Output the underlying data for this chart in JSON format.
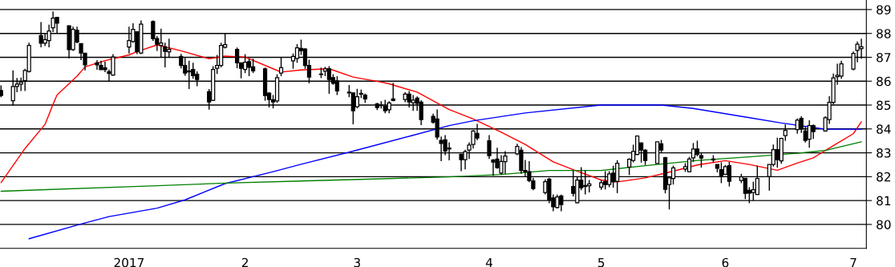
{
  "chart_data": {
    "type": "candlestick",
    "x": [
      "2016-12-02",
      "2016-12-05",
      "2016-12-06",
      "2016-12-07",
      "2016-12-08",
      "2016-12-09",
      "2016-12-12",
      "2016-12-13",
      "2016-12-14",
      "2016-12-15",
      "2016-12-16",
      "2016-12-19",
      "2016-12-20",
      "2016-12-21",
      "2016-12-22",
      "2016-12-23",
      "2016-12-26",
      "2016-12-27",
      "2016-12-28",
      "2016-12-29",
      "2016-12-30",
      "2017-01-03",
      "2017-01-04",
      "2017-01-05",
      "2017-01-06",
      "2017-01-09",
      "2017-01-10",
      "2017-01-11",
      "2017-01-12",
      "2017-01-13",
      "2017-01-16",
      "2017-01-17",
      "2017-01-18",
      "2017-01-19",
      "2017-01-20",
      "2017-01-23",
      "2017-01-24",
      "2017-01-25",
      "2017-01-26",
      "2017-01-27",
      "2017-01-30",
      "2017-01-31",
      "2017-02-01",
      "2017-02-02",
      "2017-02-03",
      "2017-02-06",
      "2017-02-07",
      "2017-02-08",
      "2017-02-09",
      "2017-02-10",
      "2017-02-13",
      "2017-02-14",
      "2017-02-15",
      "2017-02-16",
      "2017-02-17",
      "2017-02-20",
      "2017-02-21",
      "2017-02-22",
      "2017-02-23",
      "2017-02-24",
      "2017-02-27",
      "2017-02-28",
      "2017-03-01",
      "2017-03-02",
      "2017-03-03",
      "2017-03-06",
      "2017-03-07",
      "2017-03-08",
      "2017-03-09",
      "2017-03-10",
      "2017-03-13",
      "2017-03-14",
      "2017-03-15",
      "2017-03-16",
      "2017-03-17",
      "2017-03-20",
      "2017-03-21",
      "2017-03-22",
      "2017-03-23",
      "2017-03-24",
      "2017-03-27",
      "2017-03-28",
      "2017-03-29",
      "2017-03-30",
      "2017-03-31",
      "2017-04-03",
      "2017-04-04",
      "2017-04-05",
      "2017-04-06",
      "2017-04-07",
      "2017-04-10",
      "2017-04-11",
      "2017-04-12",
      "2017-04-13",
      "2017-04-14",
      "2017-04-17",
      "2017-04-18",
      "2017-04-19",
      "2017-04-20",
      "2017-04-21",
      "2017-04-24",
      "2017-04-25",
      "2017-04-26",
      "2017-04-27",
      "2017-04-28",
      "2017-05-01",
      "2017-05-02",
      "2017-05-03",
      "2017-05-04",
      "2017-05-05",
      "2017-05-08",
      "2017-05-09",
      "2017-05-10",
      "2017-05-11",
      "2017-05-12",
      "2017-05-15",
      "2017-05-16",
      "2017-05-17",
      "2017-05-18",
      "2017-05-19",
      "2017-05-22",
      "2017-05-23",
      "2017-05-24",
      "2017-05-25",
      "2017-05-26",
      "2017-05-29",
      "2017-05-30",
      "2017-05-31",
      "2017-06-01",
      "2017-06-02",
      "2017-06-05",
      "2017-06-06",
      "2017-06-07",
      "2017-06-08",
      "2017-06-09",
      "2017-06-12",
      "2017-06-13",
      "2017-06-14",
      "2017-06-15",
      "2017-06-16",
      "2017-06-19",
      "2017-06-20",
      "2017-06-21",
      "2017-06-22",
      "2017-06-23",
      "2017-06-26",
      "2017-06-27",
      "2017-06-28",
      "2017-06-29",
      "2017-06-30",
      "2017-07-03",
      "2017-07-04",
      "2017-07-05"
    ],
    "ohlc": [
      [
        85.61,
        85.82,
        85.33,
        85.4
      ],
      [
        85.18,
        86.45,
        84.98,
        85.78
      ],
      [
        85.78,
        86.13,
        85.54,
        85.88
      ],
      [
        85.88,
        86.15,
        85.59,
        85.96
      ],
      [
        86.02,
        86.52,
        85.59,
        86.45
      ],
      [
        86.41,
        87.61,
        86.36,
        87.5
      ],
      [
        87.91,
        88.48,
        87.42,
        87.59
      ],
      [
        87.59,
        88.0,
        87.47,
        87.74
      ],
      [
        87.7,
        88.37,
        87.42,
        88.1
      ],
      [
        88.24,
        88.92,
        88.06,
        88.64
      ],
      [
        88.67,
        88.67,
        88.0,
        88.43
      ],
      [
        88.32,
        88.32,
        86.96,
        87.32
      ],
      [
        87.32,
        88.28,
        87.27,
        88.17
      ],
      [
        88.13,
        88.28,
        87.59,
        87.64
      ],
      [
        87.57,
        87.57,
        86.88,
        87.18
      ],
      [
        87.17,
        87.17,
        86.45,
        86.68
      ],
      [
        86.77,
        86.88,
        86.48,
        86.68
      ],
      [
        86.66,
        86.86,
        86.48,
        86.48
      ],
      [
        86.56,
        86.82,
        86.38,
        86.48
      ],
      [
        86.4,
        86.49,
        85.98,
        86.32
      ],
      [
        86.26,
        87.13,
        86.23,
        87.01
      ],
      [
        87.43,
        88.28,
        87.16,
        87.7
      ],
      [
        87.66,
        88.43,
        87.61,
        88.17
      ],
      [
        88.07,
        88.07,
        87.13,
        87.24
      ],
      [
        87.18,
        88.54,
        87.13,
        88.39
      ],
      [
        88.5,
        88.54,
        87.69,
        87.78
      ],
      [
        87.78,
        87.89,
        87.27,
        87.55
      ],
      [
        87.5,
        88.2,
        87.01,
        87.6
      ],
      [
        87.44,
        87.61,
        86.58,
        87.25
      ],
      [
        87.23,
        87.78,
        87.01,
        87.33
      ],
      [
        87.04,
        87.14,
        86.54,
        86.66
      ],
      [
        86.66,
        86.97,
        86.23,
        86.34
      ],
      [
        86.43,
        86.86,
        85.67,
        86.39
      ],
      [
        86.49,
        86.77,
        86.1,
        86.23
      ],
      [
        86.29,
        86.41,
        85.79,
        86.07
      ],
      [
        85.56,
        85.67,
        84.81,
        85.13
      ],
      [
        85.2,
        86.63,
        85.17,
        86.49
      ],
      [
        86.54,
        87.1,
        86.3,
        86.66
      ],
      [
        86.66,
        87.61,
        86.58,
        87.5
      ],
      [
        87.42,
        88.0,
        87.37,
        87.53
      ],
      [
        87.33,
        87.41,
        86.54,
        86.77
      ],
      [
        86.77,
        86.77,
        86.12,
        86.54
      ],
      [
        86.49,
        87.13,
        86.34,
        86.79
      ],
      [
        86.82,
        86.94,
        86.21,
        86.58
      ],
      [
        86.6,
        86.94,
        86.34,
        86.43
      ],
      [
        86.52,
        86.57,
        85.18,
        85.4
      ],
      [
        85.5,
        85.54,
        84.9,
        85.23
      ],
      [
        85.22,
        85.42,
        84.86,
        85.13
      ],
      [
        85.17,
        86.29,
        85.09,
        86.15
      ],
      [
        86.34,
        86.99,
        86.21,
        86.57
      ],
      [
        86.85,
        87.16,
        86.52,
        87.04
      ],
      [
        86.95,
        87.55,
        86.77,
        87.4
      ],
      [
        87.37,
        87.74,
        87.1,
        87.28
      ],
      [
        87.35,
        87.38,
        86.52,
        86.66
      ],
      [
        86.66,
        86.9,
        85.91,
        86.17
      ],
      [
        86.3,
        86.57,
        86.13,
        86.28
      ],
      [
        86.42,
        86.6,
        86.21,
        86.52
      ],
      [
        86.52,
        86.63,
        85.47,
        86.07
      ],
      [
        86.15,
        86.29,
        85.85,
        85.91
      ],
      [
        86.01,
        86.21,
        85.42,
        85.59
      ],
      [
        85.54,
        85.84,
        85.33,
        85.51
      ],
      [
        85.51,
        85.51,
        84.19,
        84.76
      ],
      [
        84.93,
        85.68,
        84.86,
        85.35
      ],
      [
        85.46,
        85.65,
        85.29,
        85.49
      ],
      [
        85.42,
        85.48,
        85.09,
        85.26
      ],
      [
        85.05,
        85.09,
        84.79,
        84.9
      ],
      [
        84.99,
        85.16,
        84.86,
        84.98
      ],
      [
        84.95,
        85.22,
        84.66,
        84.76
      ],
      [
        84.8,
        85.16,
        84.66,
        85.09
      ],
      [
        85.26,
        85.93,
        85.16,
        85.19
      ],
      [
        85.23,
        85.54,
        85.12,
        85.46
      ],
      [
        85.46,
        85.59,
        84.9,
        85.13
      ],
      [
        85.1,
        85.42,
        84.76,
        85.21
      ],
      [
        85.29,
        85.36,
        84.76,
        85.07
      ],
      [
        85.12,
        85.2,
        84.16,
        84.39
      ],
      [
        84.53,
        84.64,
        84.22,
        84.28
      ],
      [
        84.42,
        84.82,
        83.55,
        83.66
      ],
      [
        83.52,
        83.68,
        82.65,
        83.39
      ],
      [
        83.54,
        83.74,
        82.9,
        83.07
      ],
      [
        83.2,
        83.44,
        82.68,
        83.16
      ],
      [
        82.94,
        82.94,
        82.23,
        82.71
      ],
      [
        82.71,
        83.13,
        82.31,
        83.05
      ],
      [
        83.12,
        83.44,
        82.74,
        83.33
      ],
      [
        83.35,
        83.95,
        83.18,
        83.91
      ],
      [
        83.81,
        84.21,
        83.52,
        83.62
      ],
      [
        83.5,
        83.74,
        82.74,
        82.88
      ],
      [
        82.7,
        82.74,
        82.04,
        82.61
      ],
      [
        82.74,
        83.21,
        82.33,
        82.38
      ],
      [
        82.15,
        82.9,
        82.09,
        82.64
      ],
      [
        82.63,
        83.07,
        82.12,
        82.86
      ],
      [
        82.96,
        83.38,
        82.9,
        83.27
      ],
      [
        83.11,
        83.24,
        82.12,
        82.26
      ],
      [
        82.26,
        82.7,
        81.99,
        82.21
      ],
      [
        82.21,
        82.65,
        81.77,
        81.84
      ],
      [
        81.82,
        81.95,
        81.43,
        81.5
      ],
      [
        81.34,
        81.89,
        81.26,
        81.79
      ],
      [
        81.9,
        81.95,
        80.89,
        81.03
      ],
      [
        81.11,
        81.26,
        80.55,
        80.74
      ],
      [
        80.71,
        81.25,
        80.67,
        81.15
      ],
      [
        81.19,
        81.25,
        80.55,
        80.83
      ],
      [
        81.59,
        82.26,
        81.17,
        81.3
      ],
      [
        80.91,
        81.98,
        80.89,
        81.86
      ],
      [
        81.86,
        82.4,
        81.43,
        81.54
      ],
      [
        81.63,
        82.26,
        81.26,
        81.59
      ],
      [
        81.62,
        81.86,
        81.34,
        81.7
      ],
      [
        81.56,
        81.85,
        81.45,
        81.75
      ],
      [
        81.8,
        82.23,
        81.47,
        81.67
      ],
      [
        81.67,
        82.23,
        81.56,
        82.12
      ],
      [
        82.15,
        82.46,
        81.54,
        81.78
      ],
      [
        81.81,
        82.69,
        81.31,
        82.56
      ],
      [
        82.4,
        82.77,
        82.07,
        82.73
      ],
      [
        82.68,
        83.34,
        82.6,
        83.06
      ],
      [
        82.93,
        83.72,
        82.9,
        83.7
      ],
      [
        83.41,
        83.44,
        82.59,
        83.12
      ],
      [
        83.11,
        83.16,
        82.49,
        82.68
      ],
      [
        82.55,
        83.46,
        82.55,
        83.46
      ],
      [
        83.38,
        83.54,
        82.98,
        83.12
      ],
      [
        82.8,
        82.83,
        81.3,
        81.47
      ],
      [
        81.67,
        81.98,
        80.63,
        81.95
      ],
      [
        81.92,
        82.46,
        81.67,
        82.37
      ],
      [
        82.32,
        82.57,
        82.2,
        82.42
      ],
      [
        82.21,
        82.83,
        82.18,
        82.74
      ],
      [
        82.79,
        83.41,
        82.62,
        83.16
      ],
      [
        83.16,
        83.51,
        82.85,
        82.93
      ],
      [
        82.88,
        83.02,
        82.38,
        82.78
      ],
      [
        82.7,
        82.9,
        82.6,
        82.74
      ],
      [
        82.51,
        82.51,
        82.18,
        82.35
      ],
      [
        82.29,
        82.6,
        81.73,
        82.04
      ],
      [
        82.1,
        82.49,
        82.07,
        82.42
      ],
      [
        82.46,
        82.62,
        81.59,
        81.81
      ],
      [
        81.84,
        82.12,
        81.73,
        81.99
      ],
      [
        81.93,
        81.93,
        81.06,
        81.3
      ],
      [
        81.43,
        81.56,
        80.89,
        81.31
      ],
      [
        81.34,
        81.79,
        81.0,
        81.45
      ],
      [
        81.25,
        82.46,
        81.25,
        81.92
      ],
      [
        82.01,
        82.51,
        81.42,
        82.51
      ],
      [
        82.51,
        83.35,
        82.42,
        83.13
      ],
      [
        83.13,
        83.63,
        82.38,
        82.71
      ],
      [
        82.66,
        83.63,
        82.54,
        83.6
      ],
      [
        83.72,
        84.19,
        83.5,
        83.94
      ],
      [
        83.97,
        84.44,
        83.8,
        84.37
      ],
      [
        84.44,
        84.53,
        83.83,
        84.0
      ],
      [
        83.91,
        84.1,
        83.43,
        83.52
      ],
      [
        83.57,
        84.36,
        83.21,
        84.14
      ],
      [
        84.14,
        84.19,
        83.58,
        83.89
      ],
      [
        83.91,
        84.53,
        83.88,
        84.47
      ],
      [
        84.39,
        85.37,
        84.21,
        85.11
      ],
      [
        85.11,
        86.32,
        85.03,
        86.14
      ],
      [
        86.19,
        86.73,
        85.85,
        86.25
      ],
      [
        86.21,
        86.86,
        86.1,
        86.73
      ],
      [
        86.51,
        87.24,
        86.45,
        87.16
      ],
      [
        87.29,
        87.66,
        86.79,
        87.55
      ],
      [
        87.36,
        87.78,
        86.94,
        87.44
      ]
    ],
    "series": [
      {
        "type": "line",
        "color": "#ff0000",
        "x": [
          "2016-12-02",
          "2016-12-08",
          "2016-12-13",
          "2016-12-15",
          "2016-12-16",
          "2016-12-21",
          "2016-12-23",
          "2016-12-28",
          "2017-01-03",
          "2017-01-05",
          "2017-01-10",
          "2017-01-16",
          "2017-01-23",
          "2017-01-27",
          "2017-02-01",
          "2017-02-08",
          "2017-02-10",
          "2017-02-15",
          "2017-02-22",
          "2017-02-28",
          "2017-03-07",
          "2017-03-09",
          "2017-03-16",
          "2017-03-24",
          "2017-03-30",
          "2017-04-06",
          "2017-04-12",
          "2017-04-19",
          "2017-04-24",
          "2017-05-01",
          "2017-05-05",
          "2017-05-12",
          "2017-05-19",
          "2017-05-25",
          "2017-06-01",
          "2017-06-07",
          "2017-06-14",
          "2017-06-19",
          "2017-06-23",
          "2017-06-28",
          "2017-07-03",
          "2017-07-05"
        ],
        "values": [
          81.75,
          83.18,
          84.19,
          85.03,
          85.42,
          86.21,
          86.6,
          86.86,
          87.1,
          87.24,
          87.52,
          87.27,
          86.94,
          87.05,
          87.01,
          86.52,
          86.38,
          86.47,
          86.52,
          86.17,
          85.96,
          85.89,
          85.54,
          84.81,
          84.42,
          83.86,
          83.35,
          82.62,
          82.29,
          81.86,
          81.78,
          81.95,
          82.23,
          82.49,
          82.67,
          82.51,
          82.27,
          82.57,
          82.79,
          83.3,
          83.8,
          84.3
        ]
      },
      {
        "type": "line",
        "color": "#0000ff",
        "x": [
          "2016-12-09",
          "2016-12-22",
          "2016-12-29",
          "2017-01-10",
          "2017-01-17",
          "2017-01-27",
          "2017-02-08",
          "2017-02-15",
          "2017-02-28",
          "2017-03-14",
          "2017-03-24",
          "2017-03-30",
          "2017-04-12",
          "2017-05-01",
          "2017-05-16",
          "2017-05-24",
          "2017-06-07",
          "2017-06-15",
          "2017-06-26",
          "2017-07-05"
        ],
        "values": [
          79.4,
          80.02,
          80.33,
          80.68,
          81.03,
          81.71,
          82.21,
          82.52,
          83.07,
          83.69,
          84.14,
          84.34,
          84.67,
          85.0,
          85.0,
          84.86,
          84.47,
          84.25,
          83.99,
          83.99
        ]
      },
      {
        "type": "line",
        "color": "#008000",
        "x": [
          "2016-12-02",
          "2017-01-10",
          "2017-01-27",
          "2017-02-15",
          "2017-03-24",
          "2017-04-06",
          "2017-04-18",
          "2017-05-01",
          "2017-05-12",
          "2017-05-25",
          "2017-06-07",
          "2017-06-19",
          "2017-06-26",
          "2017-07-05"
        ],
        "values": [
          81.39,
          81.62,
          81.73,
          81.82,
          81.99,
          82.09,
          82.26,
          82.26,
          82.46,
          82.68,
          82.83,
          82.98,
          83.1,
          83.46
        ]
      }
    ],
    "xlim": [
      "2016-12-01T18:00",
      "2017-07-06T06:00"
    ],
    "xticks": [
      {
        "value": "2017-01-03",
        "label": "2017"
      },
      {
        "value": "2017-02-01",
        "label": "2"
      },
      {
        "value": "2017-03-01",
        "label": "3"
      },
      {
        "value": "2017-04-03",
        "label": "4"
      },
      {
        "value": "2017-05-01",
        "label": "5"
      },
      {
        "value": "2017-06-01",
        "label": "6"
      },
      {
        "value": "2017-07-03",
        "label": "7"
      }
    ],
    "ylim": [
      79.0,
      89.4
    ],
    "yticks": [
      80,
      81,
      82,
      83,
      84,
      85,
      86,
      87,
      88,
      89
    ],
    "grid": "y"
  }
}
